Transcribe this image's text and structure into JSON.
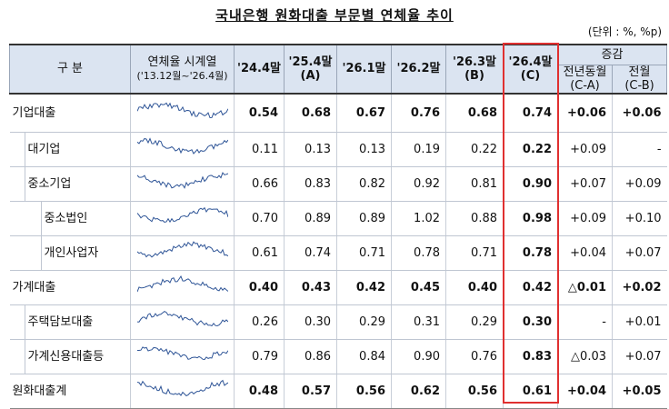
{
  "title": "국내은행 원화대출 부문별 연체율 추이",
  "unit": "(단위 : %, %p)",
  "header": {
    "category": "구 분",
    "series": "연체율 시계열",
    "series_range": "('13.12월~'26.4월)",
    "periods": [
      {
        "label": "'24.4말"
      },
      {
        "label": "'25.4말",
        "note": "(A)"
      },
      {
        "label": "'26.1말"
      },
      {
        "label": "'26.2말"
      },
      {
        "label": "'26.3말",
        "note": "(B)"
      },
      {
        "label": "'26.4말",
        "note": "(C)"
      }
    ],
    "change": "증감",
    "changes": [
      {
        "label": "전년동월",
        "note": "(C-A)"
      },
      {
        "label": "전월",
        "note": "(C-B)"
      }
    ]
  },
  "table": {
    "rows": [
      {
        "label": "기업대출",
        "values": [
          "0.54",
          "0.68",
          "0.67",
          "0.76",
          "0.68",
          "0.74",
          "+0.06",
          "+0.06"
        ]
      },
      {
        "label": "대기업",
        "values": [
          "0.11",
          "0.13",
          "0.13",
          "0.19",
          "0.22",
          "0.22",
          "+0.09",
          "-"
        ]
      },
      {
        "label": "중소기업",
        "values": [
          "0.66",
          "0.83",
          "0.82",
          "0.92",
          "0.81",
          "0.90",
          "+0.07",
          "+0.09"
        ]
      },
      {
        "label": "중소법인",
        "values": [
          "0.70",
          "0.89",
          "0.89",
          "1.02",
          "0.88",
          "0.98",
          "+0.09",
          "+0.10"
        ]
      },
      {
        "label": "개인사업자",
        "values": [
          "0.61",
          "0.74",
          "0.71",
          "0.78",
          "0.71",
          "0.78",
          "+0.04",
          "+0.07"
        ]
      },
      {
        "label": "가계대출",
        "values": [
          "0.40",
          "0.43",
          "0.42",
          "0.45",
          "0.40",
          "0.42",
          "△0.01",
          "+0.02"
        ]
      },
      {
        "label": "주택담보대출",
        "values": [
          "0.26",
          "0.30",
          "0.29",
          "0.31",
          "0.29",
          "0.30",
          "-",
          "+0.01"
        ]
      },
      {
        "label": "가계신용대출등",
        "values": [
          "0.79",
          "0.86",
          "0.84",
          "0.90",
          "0.76",
          "0.83",
          "△0.03",
          "+0.07"
        ]
      },
      {
        "label": "원화대출계",
        "values": [
          "0.48",
          "0.57",
          "0.56",
          "0.62",
          "0.56",
          "0.61",
          "+0.04",
          "+0.05"
        ]
      }
    ]
  }
}
